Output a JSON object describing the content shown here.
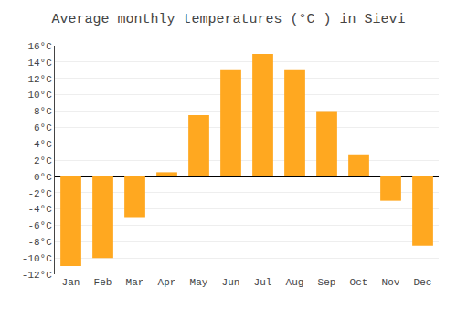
{
  "chart_data": {
    "type": "bar",
    "title": "Average monthly temperatures (°C ) in Sievi",
    "categories": [
      "Jan",
      "Feb",
      "Mar",
      "Apr",
      "May",
      "Jun",
      "Jul",
      "Aug",
      "Sep",
      "Oct",
      "Nov",
      "Dec"
    ],
    "values": [
      -11,
      -10,
      -5,
      0.5,
      7.5,
      13,
      15,
      13,
      8,
      2.7,
      -3,
      -8.5
    ],
    "color": "#FFA820",
    "ylim": [
      -12,
      16
    ],
    "yticks": [
      {
        "value": -12,
        "label": "-12°C"
      },
      {
        "value": -10,
        "label": "-10°C"
      },
      {
        "value": -8,
        "label": "-8°C"
      },
      {
        "value": -6,
        "label": "-6°C"
      },
      {
        "value": -4,
        "label": "-4°C"
      },
      {
        "value": -2,
        "label": "-2°C"
      },
      {
        "value": 0,
        "label": "0°C"
      },
      {
        "value": 2,
        "label": "2°C"
      },
      {
        "value": 4,
        "label": "4°C"
      },
      {
        "value": 6,
        "label": "6°C"
      },
      {
        "value": 8,
        "label": "8°C"
      },
      {
        "value": 10,
        "label": "10°C"
      },
      {
        "value": 12,
        "label": "12°C"
      },
      {
        "value": 14,
        "label": "14°C"
      },
      {
        "value": 16,
        "label": "16°C"
      }
    ],
    "grid": true
  }
}
